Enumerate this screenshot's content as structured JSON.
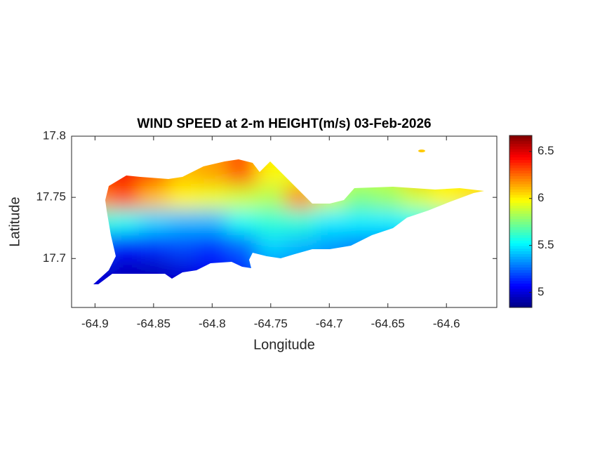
{
  "chart_data": {
    "type": "contour",
    "title": "WIND SPEED at 2-m HEIGHT(m/s) 03-Feb-2026",
    "xlabel": "Longitude",
    "ylabel": "Latitude",
    "colormap": "jet",
    "x": [
      -64.9,
      -64.875,
      -64.85,
      -64.825,
      -64.8,
      -64.775,
      -64.75,
      -64.725,
      -64.7,
      -64.675,
      -64.65,
      -64.625,
      -64.6,
      -64.575
    ],
    "y": [
      17.77,
      17.75,
      17.73,
      17.71,
      17.69
    ],
    "z": [
      [
        6.4,
        6.45,
        6.3,
        6.1,
        6.15,
        6.3,
        6.0,
        5.95,
        5.9,
        5.9,
        5.9,
        6.1,
        6.0,
        6.0
      ],
      [
        6.2,
        6.3,
        6.1,
        6.0,
        5.95,
        5.9,
        5.85,
        6.2,
        5.9,
        5.75,
        5.8,
        5.9,
        6.0,
        6.05
      ],
      [
        5.6,
        5.55,
        5.45,
        5.4,
        5.4,
        5.55,
        5.6,
        5.6,
        5.5,
        5.5,
        5.5,
        5.55,
        5.6,
        5.6
      ],
      [
        5.2,
        5.1,
        5.15,
        5.2,
        5.15,
        5.25,
        5.45,
        5.4,
        5.35,
        5.3,
        5.3,
        5.3,
        5.3,
        5.3
      ],
      [
        5.0,
        4.95,
        4.95,
        5.0,
        5.05,
        5.1,
        5.3,
        5.3,
        5.3,
        5.3,
        5.3,
        5.3,
        5.3,
        5.3
      ]
    ],
    "xlim": [
      -64.92,
      -64.557
    ],
    "ylim": [
      17.66,
      17.8
    ],
    "xticks": [
      -64.9,
      -64.85,
      -64.8,
      -64.75,
      -64.7,
      -64.65,
      -64.6
    ],
    "yticks": [
      17.7,
      17.75,
      17.8
    ],
    "clim": [
      4.84,
      6.67
    ],
    "cticks": [
      5,
      5.5,
      6,
      6.5
    ]
  }
}
